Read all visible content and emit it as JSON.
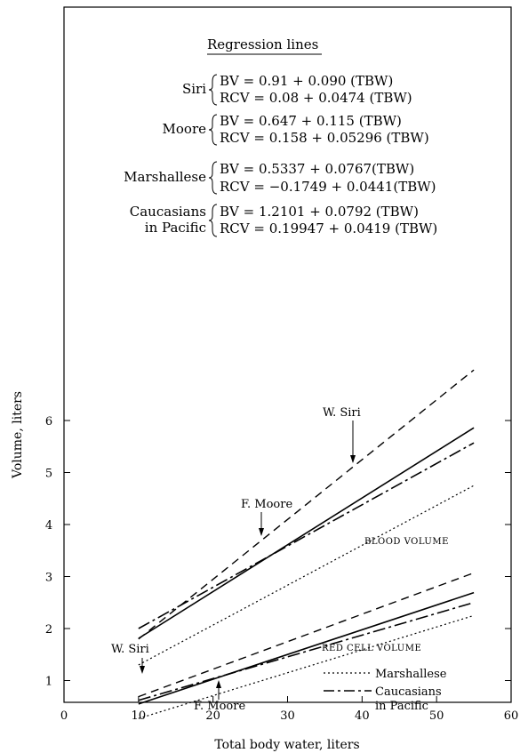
{
  "chart_data": {
    "type": "line",
    "xlabel": "Total body water, liters",
    "ylabel": "Volume, liters",
    "xlim": [
      0,
      60
    ],
    "ylim": [
      0,
      7
    ],
    "xticks": [
      "0",
      "10",
      "20",
      "30",
      "40",
      "50",
      "60"
    ],
    "yticks": [
      "1",
      "2",
      "3",
      "4",
      "5",
      "6"
    ],
    "grid": false,
    "x_range": [
      10,
      55
    ],
    "regression_title": "Regression lines",
    "equations": [
      {
        "group": "Siri",
        "bv": "BV   = 0.91 + 0.090 (TBW)",
        "rcv": "RCV = 0.08 + 0.0474 (TBW)"
      },
      {
        "group": "Moore",
        "bv": "BV   = 0.647 + 0.115 (TBW)",
        "rcv": "RCV = 0.158 + 0.05296 (TBW)"
      },
      {
        "group": "Marshallese",
        "bv": "BV   = 0.5337 + 0.0767(TBW)",
        "rcv": "RCV = −0.1749 + 0.0441(TBW)"
      },
      {
        "group": "Caucasians",
        "group_line2": "in Pacific",
        "bv": "BV   = 1.2101 + 0.0792 (TBW)",
        "rcv": "RCV = 0.19947 + 0.0419 (TBW)"
      }
    ],
    "series": [
      {
        "name": "Siri BV",
        "style": "solid",
        "intercept": 0.91,
        "slope": 0.09,
        "values": [
          [
            10,
            1.81
          ],
          [
            55,
            5.86
          ]
        ]
      },
      {
        "name": "Moore BV",
        "style": "dashed",
        "intercept": 0.647,
        "slope": 0.115,
        "values": [
          [
            10,
            1.797
          ],
          [
            55,
            6.972
          ]
        ]
      },
      {
        "name": "Marshallese BV",
        "style": "dotted",
        "intercept": 0.5337,
        "slope": 0.0767,
        "values": [
          [
            10,
            1.3
          ],
          [
            55,
            4.75
          ]
        ]
      },
      {
        "name": "Caucasians in Pacific BV",
        "style": "dashdot",
        "intercept": 1.2101,
        "slope": 0.0792,
        "values": [
          [
            10,
            2.0
          ],
          [
            55,
            5.57
          ]
        ]
      },
      {
        "name": "Siri RCV",
        "style": "solid",
        "intercept": 0.08,
        "slope": 0.0474,
        "values": [
          [
            10,
            0.55
          ],
          [
            55,
            2.69
          ]
        ]
      },
      {
        "name": "Moore RCV",
        "style": "dashed",
        "intercept": 0.158,
        "slope": 0.05296,
        "values": [
          [
            10,
            0.69
          ],
          [
            55,
            3.07
          ]
        ]
      },
      {
        "name": "Marshallese RCV",
        "style": "dotted",
        "intercept": -0.1749,
        "slope": 0.0441,
        "values": [
          [
            10,
            0.27
          ],
          [
            55,
            2.25
          ]
        ]
      },
      {
        "name": "Caucasians in Pacific RCV",
        "style": "dashdot",
        "intercept": 0.19947,
        "slope": 0.0419,
        "values": [
          [
            10,
            0.62
          ],
          [
            55,
            2.5
          ]
        ]
      }
    ],
    "annotations": {
      "w_siri_top": "W. Siri",
      "f_moore_top": "F. Moore",
      "blood_volume": "BLOOD VOLUME",
      "w_siri_bottom": "W. Siri",
      "f_moore_bottom": "F. Moore",
      "red_cell_volume": "RED CELL VOLUME"
    },
    "legend": [
      {
        "label": "Marshallese",
        "style": "dotted"
      },
      {
        "label": "Caucasians",
        "label_line2": "in Pacific",
        "style": "dashdot"
      }
    ]
  }
}
